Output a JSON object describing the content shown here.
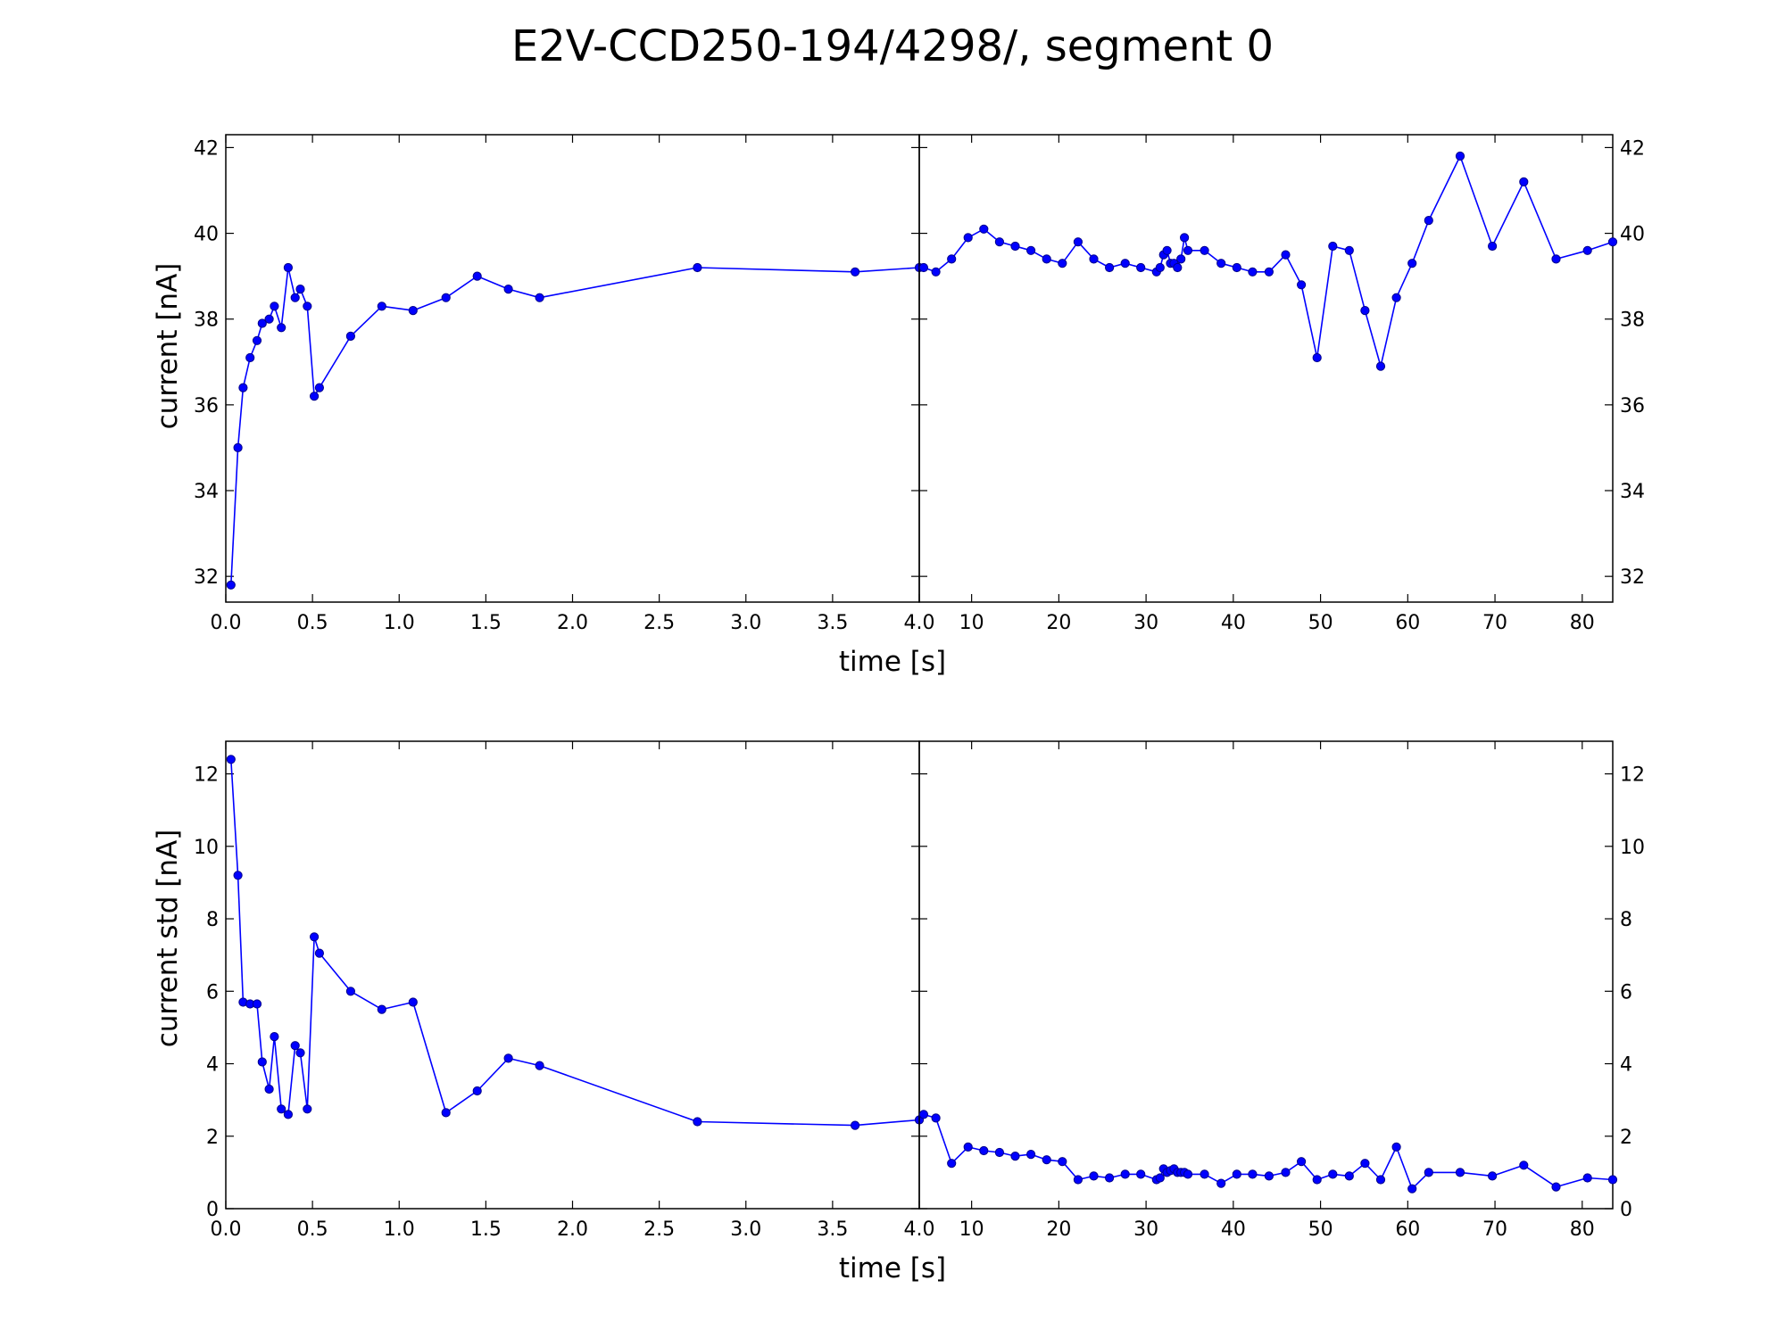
{
  "title": "E2V-CCD250-194/4298/, segment 0",
  "colors": {
    "series": "#0000ff",
    "marker_edge": "#00008b",
    "axes": "#000000"
  },
  "chart_data": [
    {
      "type": "line",
      "ylabel": "current [nA]",
      "xlabel": "time [s]",
      "ylim": [
        31.4,
        42.3
      ],
      "yticks": [
        "32",
        "34",
        "36",
        "38",
        "40",
        "42"
      ],
      "ytick_values": [
        32,
        34,
        36,
        38,
        40,
        42
      ],
      "left": {
        "xlim": [
          0.0,
          4.0
        ],
        "xticks": [
          "0.0",
          "0.5",
          "1.0",
          "1.5",
          "2.0",
          "2.5",
          "3.0",
          "3.5",
          "4.0"
        ],
        "xtick_values": [
          0.0,
          0.5,
          1.0,
          1.5,
          2.0,
          2.5,
          3.0,
          3.5,
          4.0
        ],
        "x": [
          0.03,
          0.07,
          0.1,
          0.14,
          0.18,
          0.21,
          0.25,
          0.28,
          0.32,
          0.36,
          0.4,
          0.43,
          0.47,
          0.51,
          0.54,
          0.72,
          0.9,
          1.08,
          1.27,
          1.45,
          1.63,
          1.81,
          2.72,
          3.63,
          4.0
        ],
        "y": [
          31.8,
          35.0,
          36.4,
          37.1,
          37.5,
          37.9,
          38.0,
          38.3,
          37.8,
          39.2,
          38.5,
          38.7,
          38.3,
          36.2,
          36.4,
          37.6,
          38.3,
          38.2,
          38.5,
          39.0,
          38.7,
          38.5,
          39.2,
          39.1,
          39.2
        ]
      },
      "right": {
        "xlim": [
          4.0,
          83.5
        ],
        "xticks": [
          "10",
          "20",
          "30",
          "40",
          "50",
          "60",
          "70",
          "80"
        ],
        "xtick_values": [
          10,
          20,
          30,
          40,
          50,
          60,
          70,
          80
        ],
        "x": [
          4.5,
          5.9,
          7.7,
          9.6,
          11.4,
          13.2,
          15.0,
          16.8,
          18.6,
          20.4,
          22.2,
          24.0,
          25.8,
          27.6,
          29.4,
          31.2,
          31.6,
          32.0,
          32.4,
          32.8,
          33.2,
          33.6,
          34.0,
          34.4,
          34.8,
          36.7,
          38.6,
          40.4,
          42.2,
          44.1,
          46.0,
          47.8,
          49.6,
          51.4,
          53.3,
          55.1,
          56.9,
          58.7,
          60.5,
          62.4,
          66.0,
          69.7,
          73.3,
          77.0,
          80.6,
          83.5
        ],
        "y": [
          39.2,
          39.1,
          39.4,
          39.9,
          40.1,
          39.8,
          39.7,
          39.6,
          39.4,
          39.3,
          39.8,
          39.4,
          39.2,
          39.3,
          39.2,
          39.1,
          39.2,
          39.5,
          39.6,
          39.3,
          39.3,
          39.2,
          39.4,
          39.9,
          39.6,
          39.6,
          39.3,
          39.2,
          39.1,
          39.1,
          39.5,
          38.8,
          37.1,
          39.7,
          39.6,
          38.2,
          36.9,
          38.5,
          39.3,
          40.3,
          41.8,
          39.7,
          41.2,
          39.4,
          39.6,
          39.8
        ]
      }
    },
    {
      "type": "line",
      "ylabel": "current std [nA]",
      "xlabel": "time [s]",
      "ylim": [
        0,
        12.9
      ],
      "yticks": [
        "0",
        "2",
        "4",
        "6",
        "8",
        "10",
        "12"
      ],
      "ytick_values": [
        0,
        2,
        4,
        6,
        8,
        10,
        12
      ],
      "left": {
        "xlim": [
          0.0,
          4.0
        ],
        "xticks": [
          "0.0",
          "0.5",
          "1.0",
          "1.5",
          "2.0",
          "2.5",
          "3.0",
          "3.5",
          "4.0"
        ],
        "xtick_values": [
          0.0,
          0.5,
          1.0,
          1.5,
          2.0,
          2.5,
          3.0,
          3.5,
          4.0
        ],
        "x": [
          0.03,
          0.07,
          0.1,
          0.14,
          0.18,
          0.21,
          0.25,
          0.28,
          0.32,
          0.36,
          0.4,
          0.43,
          0.47,
          0.51,
          0.54,
          0.72,
          0.9,
          1.08,
          1.27,
          1.45,
          1.63,
          1.81,
          2.72,
          3.63,
          4.0
        ],
        "y": [
          12.4,
          9.2,
          5.7,
          5.65,
          5.65,
          4.05,
          3.3,
          4.75,
          2.75,
          2.6,
          4.5,
          4.3,
          2.75,
          7.5,
          7.05,
          6.0,
          5.5,
          5.7,
          2.65,
          3.25,
          4.15,
          3.95,
          2.4,
          2.3,
          2.45
        ]
      },
      "right": {
        "xlim": [
          4.0,
          83.5
        ],
        "xticks": [
          "10",
          "20",
          "30",
          "40",
          "50",
          "60",
          "70",
          "80"
        ],
        "xtick_values": [
          10,
          20,
          30,
          40,
          50,
          60,
          70,
          80
        ],
        "x": [
          4.5,
          5.9,
          7.7,
          9.6,
          11.4,
          13.2,
          15.0,
          16.8,
          18.6,
          20.4,
          22.2,
          24.0,
          25.8,
          27.6,
          29.4,
          31.2,
          31.6,
          32.0,
          32.4,
          32.8,
          33.2,
          33.6,
          34.0,
          34.4,
          34.8,
          36.7,
          38.6,
          40.4,
          42.2,
          44.1,
          46.0,
          47.8,
          49.6,
          51.4,
          53.3,
          55.1,
          56.9,
          58.7,
          60.5,
          62.4,
          66.0,
          69.7,
          73.3,
          77.0,
          80.6,
          83.5
        ],
        "y": [
          2.6,
          2.5,
          1.25,
          1.7,
          1.6,
          1.55,
          1.45,
          1.5,
          1.35,
          1.3,
          0.8,
          0.9,
          0.85,
          0.95,
          0.95,
          0.8,
          0.85,
          1.1,
          1.0,
          1.05,
          1.1,
          1.0,
          1.0,
          1.0,
          0.95,
          0.95,
          0.7,
          0.95,
          0.95,
          0.9,
          1.0,
          1.3,
          0.8,
          0.95,
          0.9,
          1.25,
          0.8,
          1.7,
          0.55,
          1.0,
          1.0,
          0.9,
          1.2,
          0.6,
          0.85,
          0.8
        ]
      }
    }
  ]
}
